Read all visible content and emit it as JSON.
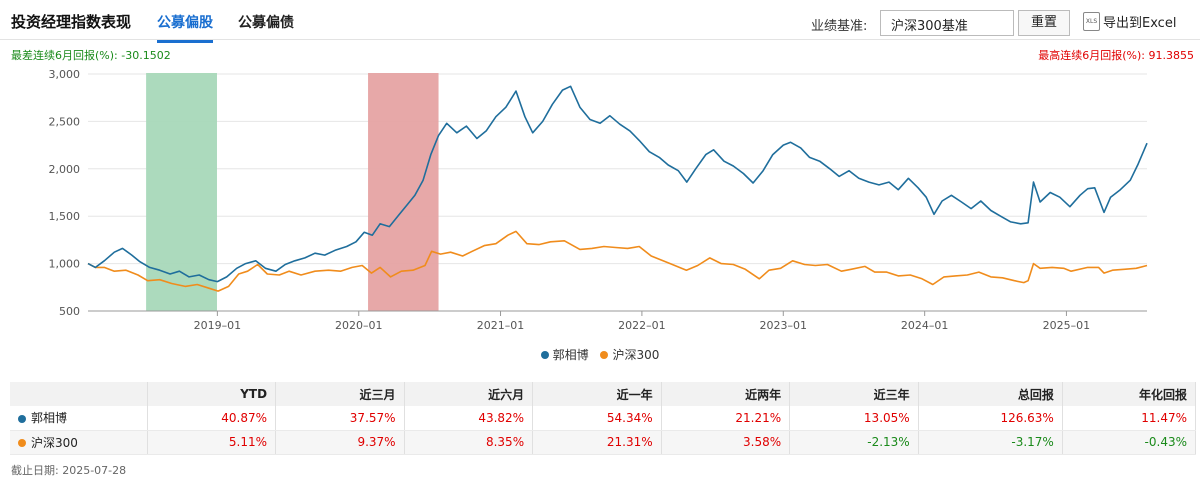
{
  "header": {
    "title": "投资经理指数表现",
    "tabs": [
      {
        "label": "公募偏股",
        "active": true
      },
      {
        "label": "公募偏债",
        "active": false
      }
    ],
    "benchmark_label": "业绩基准:",
    "benchmark_value": "沪深300基准",
    "reset_label": "重置",
    "export_icon_text": "XLS",
    "export_label": "导出到Excel"
  },
  "stats": {
    "worst": "最差连续6月回报(%): -30.1502",
    "best": "最高连续6月回报(%): 91.3855"
  },
  "chart_data": {
    "type": "line",
    "x_range": [
      "2018-02-01",
      "2025-07-28"
    ],
    "ylim": [
      500,
      3000
    ],
    "y_ticks": [
      {
        "value": 500,
        "label": "500"
      },
      {
        "value": 1000,
        "label": "1,000"
      },
      {
        "value": 1500,
        "label": "1,500"
      },
      {
        "value": 2000,
        "label": "2,000"
      },
      {
        "value": 2500,
        "label": "2,500"
      },
      {
        "value": 3000,
        "label": "3,000"
      }
    ],
    "x_ticks": [
      {
        "date": "2019-01-01",
        "label": "2019–01"
      },
      {
        "date": "2020-01-01",
        "label": "2020–01"
      },
      {
        "date": "2021-01-01",
        "label": "2021–01"
      },
      {
        "date": "2022-01-01",
        "label": "2022–01"
      },
      {
        "date": "2023-01-01",
        "label": "2023–01"
      },
      {
        "date": "2024-01-01",
        "label": "2024–01"
      },
      {
        "date": "2025-01-01",
        "label": "2025–01"
      }
    ],
    "bands": [
      {
        "from": "2018-07-01",
        "to": "2018-12-31",
        "color": "#a8d8b9",
        "meaning": "worst 6-month period"
      },
      {
        "from": "2020-01-25",
        "to": "2020-07-25",
        "color": "#e6a3a3",
        "meaning": "best 6-month period"
      }
    ],
    "grid": true,
    "legend_position": "bottom",
    "series": [
      {
        "name": "郭相博",
        "color": "#1f6e9c",
        "points": [
          [
            "2018-02-01",
            1000
          ],
          [
            "2018-02-20",
            960
          ],
          [
            "2018-03-15",
            1030
          ],
          [
            "2018-04-10",
            1120
          ],
          [
            "2018-05-01",
            1160
          ],
          [
            "2018-05-25",
            1090
          ],
          [
            "2018-06-15",
            1020
          ],
          [
            "2018-07-10",
            960
          ],
          [
            "2018-08-05",
            930
          ],
          [
            "2018-09-01",
            890
          ],
          [
            "2018-09-25",
            920
          ],
          [
            "2018-10-20",
            860
          ],
          [
            "2018-11-15",
            880
          ],
          [
            "2018-12-10",
            830
          ],
          [
            "2019-01-01",
            810
          ],
          [
            "2019-01-25",
            860
          ],
          [
            "2019-02-20",
            950
          ],
          [
            "2019-03-15",
            1000
          ],
          [
            "2019-04-10",
            1030
          ],
          [
            "2019-05-05",
            950
          ],
          [
            "2019-06-01",
            920
          ],
          [
            "2019-06-25",
            990
          ],
          [
            "2019-07-20",
            1030
          ],
          [
            "2019-08-15",
            1060
          ],
          [
            "2019-09-10",
            1110
          ],
          [
            "2019-10-05",
            1090
          ],
          [
            "2019-11-01",
            1140
          ],
          [
            "2019-12-01",
            1180
          ],
          [
            "2019-12-25",
            1230
          ],
          [
            "2020-01-15",
            1330
          ],
          [
            "2020-02-05",
            1300
          ],
          [
            "2020-02-25",
            1420
          ],
          [
            "2020-03-20",
            1390
          ],
          [
            "2020-04-15",
            1520
          ],
          [
            "2020-05-05",
            1620
          ],
          [
            "2020-05-25",
            1720
          ],
          [
            "2020-06-15",
            1880
          ],
          [
            "2020-07-05",
            2150
          ],
          [
            "2020-07-25",
            2350
          ],
          [
            "2020-08-15",
            2480
          ],
          [
            "2020-09-10",
            2380
          ],
          [
            "2020-10-05",
            2450
          ],
          [
            "2020-11-01",
            2320
          ],
          [
            "2020-11-25",
            2400
          ],
          [
            "2020-12-20",
            2550
          ],
          [
            "2021-01-15",
            2650
          ],
          [
            "2021-02-10",
            2820
          ],
          [
            "2021-03-05",
            2550
          ],
          [
            "2021-03-25",
            2380
          ],
          [
            "2021-04-20",
            2500
          ],
          [
            "2021-05-15",
            2680
          ],
          [
            "2021-06-10",
            2830
          ],
          [
            "2021-07-01",
            2870
          ],
          [
            "2021-07-25",
            2650
          ],
          [
            "2021-08-20",
            2520
          ],
          [
            "2021-09-15",
            2480
          ],
          [
            "2021-10-10",
            2560
          ],
          [
            "2021-11-05",
            2470
          ],
          [
            "2021-12-01",
            2400
          ],
          [
            "2021-12-25",
            2300
          ],
          [
            "2022-01-20",
            2180
          ],
          [
            "2022-02-15",
            2120
          ],
          [
            "2022-03-10",
            2040
          ],
          [
            "2022-04-05",
            1980
          ],
          [
            "2022-04-27",
            1860
          ],
          [
            "2022-05-20",
            2000
          ],
          [
            "2022-06-15",
            2150
          ],
          [
            "2022-07-05",
            2200
          ],
          [
            "2022-08-01",
            2080
          ],
          [
            "2022-08-25",
            2030
          ],
          [
            "2022-09-20",
            1950
          ],
          [
            "2022-10-15",
            1850
          ],
          [
            "2022-11-10",
            1980
          ],
          [
            "2022-12-05",
            2150
          ],
          [
            "2023-01-01",
            2250
          ],
          [
            "2023-01-20",
            2280
          ],
          [
            "2023-02-15",
            2220
          ],
          [
            "2023-03-10",
            2120
          ],
          [
            "2023-04-05",
            2080
          ],
          [
            "2023-05-01",
            2000
          ],
          [
            "2023-05-25",
            1920
          ],
          [
            "2023-06-20",
            1980
          ],
          [
            "2023-07-15",
            1900
          ],
          [
            "2023-08-10",
            1860
          ],
          [
            "2023-09-05",
            1830
          ],
          [
            "2023-10-01",
            1860
          ],
          [
            "2023-10-25",
            1780
          ],
          [
            "2023-11-20",
            1900
          ],
          [
            "2023-12-15",
            1800
          ],
          [
            "2024-01-05",
            1700
          ],
          [
            "2024-01-25",
            1520
          ],
          [
            "2024-02-15",
            1660
          ],
          [
            "2024-03-10",
            1720
          ],
          [
            "2024-04-05",
            1650
          ],
          [
            "2024-04-30",
            1580
          ],
          [
            "2024-05-25",
            1660
          ],
          [
            "2024-06-20",
            1560
          ],
          [
            "2024-07-15",
            1500
          ],
          [
            "2024-08-10",
            1440
          ],
          [
            "2024-09-05",
            1420
          ],
          [
            "2024-09-24",
            1430
          ],
          [
            "2024-10-08",
            1860
          ],
          [
            "2024-10-25",
            1650
          ],
          [
            "2024-11-20",
            1750
          ],
          [
            "2024-12-15",
            1700
          ],
          [
            "2025-01-10",
            1600
          ],
          [
            "2025-02-05",
            1720
          ],
          [
            "2025-02-25",
            1790
          ],
          [
            "2025-03-15",
            1800
          ],
          [
            "2025-04-08",
            1540
          ],
          [
            "2025-04-25",
            1700
          ],
          [
            "2025-05-20",
            1780
          ],
          [
            "2025-06-15",
            1880
          ],
          [
            "2025-07-05",
            2050
          ],
          [
            "2025-07-28",
            2270
          ]
        ]
      },
      {
        "name": "沪深300",
        "color": "#f08c1c",
        "points": [
          [
            "2018-02-01",
            1000
          ],
          [
            "2018-02-20",
            960
          ],
          [
            "2018-03-15",
            960
          ],
          [
            "2018-04-10",
            920
          ],
          [
            "2018-05-10",
            930
          ],
          [
            "2018-06-10",
            880
          ],
          [
            "2018-07-05",
            820
          ],
          [
            "2018-08-05",
            830
          ],
          [
            "2018-09-05",
            790
          ],
          [
            "2018-10-10",
            760
          ],
          [
            "2018-11-10",
            780
          ],
          [
            "2018-12-10",
            740
          ],
          [
            "2019-01-03",
            710
          ],
          [
            "2019-01-30",
            760
          ],
          [
            "2019-02-25",
            890
          ],
          [
            "2019-03-20",
            920
          ],
          [
            "2019-04-15",
            990
          ],
          [
            "2019-05-10",
            890
          ],
          [
            "2019-06-10",
            880
          ],
          [
            "2019-07-05",
            920
          ],
          [
            "2019-08-05",
            880
          ],
          [
            "2019-09-10",
            920
          ],
          [
            "2019-10-15",
            930
          ],
          [
            "2019-11-15",
            920
          ],
          [
            "2019-12-15",
            960
          ],
          [
            "2020-01-10",
            980
          ],
          [
            "2020-02-03",
            900
          ],
          [
            "2020-02-25",
            960
          ],
          [
            "2020-03-23",
            860
          ],
          [
            "2020-04-20",
            920
          ],
          [
            "2020-05-20",
            930
          ],
          [
            "2020-06-20",
            980
          ],
          [
            "2020-07-07",
            1130
          ],
          [
            "2020-07-30",
            1100
          ],
          [
            "2020-08-25",
            1120
          ],
          [
            "2020-09-25",
            1080
          ],
          [
            "2020-10-20",
            1130
          ],
          [
            "2020-11-20",
            1190
          ],
          [
            "2020-12-20",
            1210
          ],
          [
            "2021-01-20",
            1300
          ],
          [
            "2021-02-10",
            1340
          ],
          [
            "2021-03-10",
            1210
          ],
          [
            "2021-04-10",
            1200
          ],
          [
            "2021-05-10",
            1230
          ],
          [
            "2021-06-15",
            1240
          ],
          [
            "2021-07-25",
            1150
          ],
          [
            "2021-08-25",
            1160
          ],
          [
            "2021-09-25",
            1180
          ],
          [
            "2021-10-25",
            1170
          ],
          [
            "2021-11-25",
            1160
          ],
          [
            "2021-12-25",
            1180
          ],
          [
            "2022-01-25",
            1080
          ],
          [
            "2022-03-15",
            1000
          ],
          [
            "2022-04-26",
            930
          ],
          [
            "2022-05-25",
            980
          ],
          [
            "2022-06-25",
            1060
          ],
          [
            "2022-07-25",
            1000
          ],
          [
            "2022-08-25",
            990
          ],
          [
            "2022-09-25",
            940
          ],
          [
            "2022-10-31",
            840
          ],
          [
            "2022-11-25",
            930
          ],
          [
            "2022-12-25",
            950
          ],
          [
            "2023-01-25",
            1030
          ],
          [
            "2023-02-25",
            990
          ],
          [
            "2023-03-25",
            980
          ],
          [
            "2023-04-25",
            990
          ],
          [
            "2023-05-31",
            920
          ],
          [
            "2023-06-25",
            940
          ],
          [
            "2023-07-31",
            970
          ],
          [
            "2023-08-25",
            910
          ],
          [
            "2023-09-25",
            910
          ],
          [
            "2023-10-25",
            870
          ],
          [
            "2023-11-25",
            880
          ],
          [
            "2023-12-25",
            840
          ],
          [
            "2024-01-22",
            780
          ],
          [
            "2024-02-20",
            860
          ],
          [
            "2024-03-20",
            870
          ],
          [
            "2024-04-20",
            880
          ],
          [
            "2024-05-20",
            910
          ],
          [
            "2024-06-20",
            860
          ],
          [
            "2024-07-20",
            850
          ],
          [
            "2024-08-20",
            820
          ],
          [
            "2024-09-13",
            800
          ],
          [
            "2024-09-24",
            820
          ],
          [
            "2024-10-08",
            1000
          ],
          [
            "2024-10-25",
            950
          ],
          [
            "2024-11-25",
            960
          ],
          [
            "2024-12-25",
            950
          ],
          [
            "2025-01-13",
            920
          ],
          [
            "2025-02-25",
            960
          ],
          [
            "2025-03-25",
            960
          ],
          [
            "2025-04-08",
            900
          ],
          [
            "2025-04-30",
            930
          ],
          [
            "2025-05-30",
            940
          ],
          [
            "2025-06-30",
            950
          ],
          [
            "2025-07-28",
            980
          ]
        ]
      }
    ]
  },
  "legend": [
    {
      "label": "郭相博",
      "color": "#1f6e9c"
    },
    {
      "label": "沪深300",
      "color": "#f08c1c"
    }
  ],
  "table": {
    "columns": [
      "",
      "YTD",
      "近三月",
      "近六月",
      "近一年",
      "近两年",
      "近三年",
      "总回报",
      "年化回报"
    ],
    "rows": [
      {
        "name": "郭相博",
        "color": "#1f6e9c",
        "values": [
          "40.87%",
          "37.57%",
          "43.82%",
          "54.34%",
          "21.21%",
          "13.05%",
          "126.63%",
          "11.47%"
        ]
      },
      {
        "name": "沪深300",
        "color": "#f08c1c",
        "values": [
          "5.11%",
          "9.37%",
          "8.35%",
          "21.31%",
          "3.58%",
          "-2.13%",
          "-3.17%",
          "-0.43%"
        ]
      }
    ]
  },
  "footer": "截止日期: 2025-07-28"
}
